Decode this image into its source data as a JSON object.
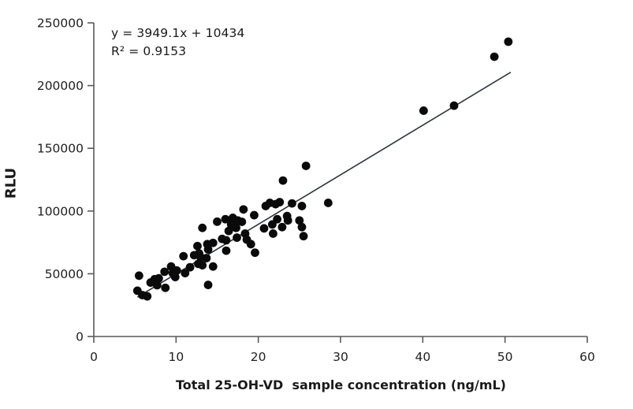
{
  "chart_data": {
    "type": "scatter",
    "title": "",
    "xlabel": "Total 25-OH-VD  sample concentration (ng/mL)",
    "ylabel": "RLU",
    "xlim": [
      0,
      60
    ],
    "ylim": [
      0,
      250000
    ],
    "x_ticks": [
      0,
      10,
      20,
      30,
      40,
      50,
      60
    ],
    "y_ticks": [
      0,
      50000,
      100000,
      150000,
      200000,
      250000
    ],
    "grid": false,
    "legend_position": "none",
    "annotation": {
      "equation": "y = 3949.1x + 10434",
      "r_squared": "R² = 0.9153"
    },
    "trendline": {
      "slope": 3949.1,
      "intercept": 10434,
      "x_start": 5.3,
      "x_end": 50.7
    },
    "points": [
      [
        5.3,
        36500
      ],
      [
        5.5,
        48500
      ],
      [
        5.9,
        33000
      ],
      [
        6.5,
        32000
      ],
      [
        6.9,
        43000
      ],
      [
        7.4,
        45700
      ],
      [
        7.7,
        40900
      ],
      [
        7.9,
        46400
      ],
      [
        8.6,
        51600
      ],
      [
        8.7,
        38800
      ],
      [
        9.4,
        55800
      ],
      [
        9.6,
        50500
      ],
      [
        9.9,
        47400
      ],
      [
        10.1,
        52600
      ],
      [
        10.9,
        64000
      ],
      [
        11.1,
        50500
      ],
      [
        11.7,
        55200
      ],
      [
        12.2,
        64800
      ],
      [
        12.6,
        72100
      ],
      [
        12.7,
        57900
      ],
      [
        12.8,
        66200
      ],
      [
        13.0,
        63100
      ],
      [
        13.2,
        56800
      ],
      [
        13.2,
        86600
      ],
      [
        13.7,
        62500
      ],
      [
        13.8,
        73600
      ],
      [
        13.9,
        69400
      ],
      [
        13.9,
        41100
      ],
      [
        14.5,
        74600
      ],
      [
        14.5,
        55800
      ],
      [
        15.0,
        91500
      ],
      [
        15.6,
        77800
      ],
      [
        16.0,
        93500
      ],
      [
        16.1,
        76700
      ],
      [
        16.1,
        68400
      ],
      [
        16.4,
        84100
      ],
      [
        16.7,
        89300
      ],
      [
        16.9,
        94600
      ],
      [
        17.3,
        86600
      ],
      [
        17.4,
        78800
      ],
      [
        17.5,
        92500
      ],
      [
        18.0,
        91400
      ],
      [
        18.2,
        101300
      ],
      [
        18.4,
        82000
      ],
      [
        18.6,
        77200
      ],
      [
        19.1,
        73600
      ],
      [
        19.5,
        96700
      ],
      [
        19.6,
        66800
      ],
      [
        20.7,
        86200
      ],
      [
        20.9,
        104000
      ],
      [
        21.4,
        106500
      ],
      [
        21.7,
        89300
      ],
      [
        21.8,
        82000
      ],
      [
        22.1,
        105500
      ],
      [
        22.3,
        93500
      ],
      [
        22.6,
        107100
      ],
      [
        22.9,
        87200
      ],
      [
        23.0,
        124300
      ],
      [
        23.5,
        96000
      ],
      [
        23.6,
        92500
      ],
      [
        24.1,
        106100
      ],
      [
        25.0,
        92500
      ],
      [
        25.3,
        104000
      ],
      [
        25.3,
        87200
      ],
      [
        25.5,
        80000
      ],
      [
        25.8,
        136000
      ],
      [
        28.5,
        106500
      ],
      [
        40.1,
        180000
      ],
      [
        43.8,
        184000
      ],
      [
        48.7,
        223000
      ],
      [
        50.4,
        235000
      ]
    ],
    "colors": {
      "point": "#0a0a0a",
      "trendline": "#2e3440",
      "axis": "#595959",
      "tick_label": "#1f1f1f",
      "background": "#ffffff"
    }
  }
}
